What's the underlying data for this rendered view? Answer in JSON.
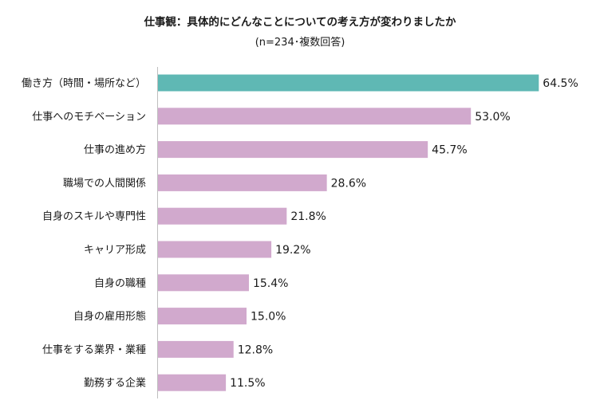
{
  "chart_data": {
    "type": "bar",
    "orientation": "horizontal",
    "title": "仕事観：具体的にどんなことについての考え方が変わりましたか",
    "subtitle": "(n=234･複数回答)",
    "unit": "%",
    "xlim": [
      0,
      70
    ],
    "grid": false,
    "legend": "none",
    "categories": [
      "働き方（時間・場所など）",
      "仕事へのモチベーション",
      "仕事の進め方",
      "職場での人間関係",
      "自身のスキルや専門性",
      "キャリア形成",
      "自身の職種",
      "自身の雇用形態",
      "仕事をする業界・業種",
      "勤務する企業"
    ],
    "values": [
      64.5,
      53.0,
      45.7,
      28.6,
      21.8,
      19.2,
      15.4,
      15.0,
      12.8,
      11.5
    ],
    "value_labels": [
      "64.5%",
      "53.0%",
      "45.7%",
      "28.6%",
      "21.8%",
      "19.2%",
      "15.4%",
      "15.0%",
      "12.8%",
      "11.5%"
    ],
    "colors": [
      "#5fb8b4",
      "#d1a9cd",
      "#d1a9cd",
      "#d1a9cd",
      "#d1a9cd",
      "#d1a9cd",
      "#d1a9cd",
      "#d1a9cd",
      "#d1a9cd",
      "#d1a9cd"
    ]
  }
}
